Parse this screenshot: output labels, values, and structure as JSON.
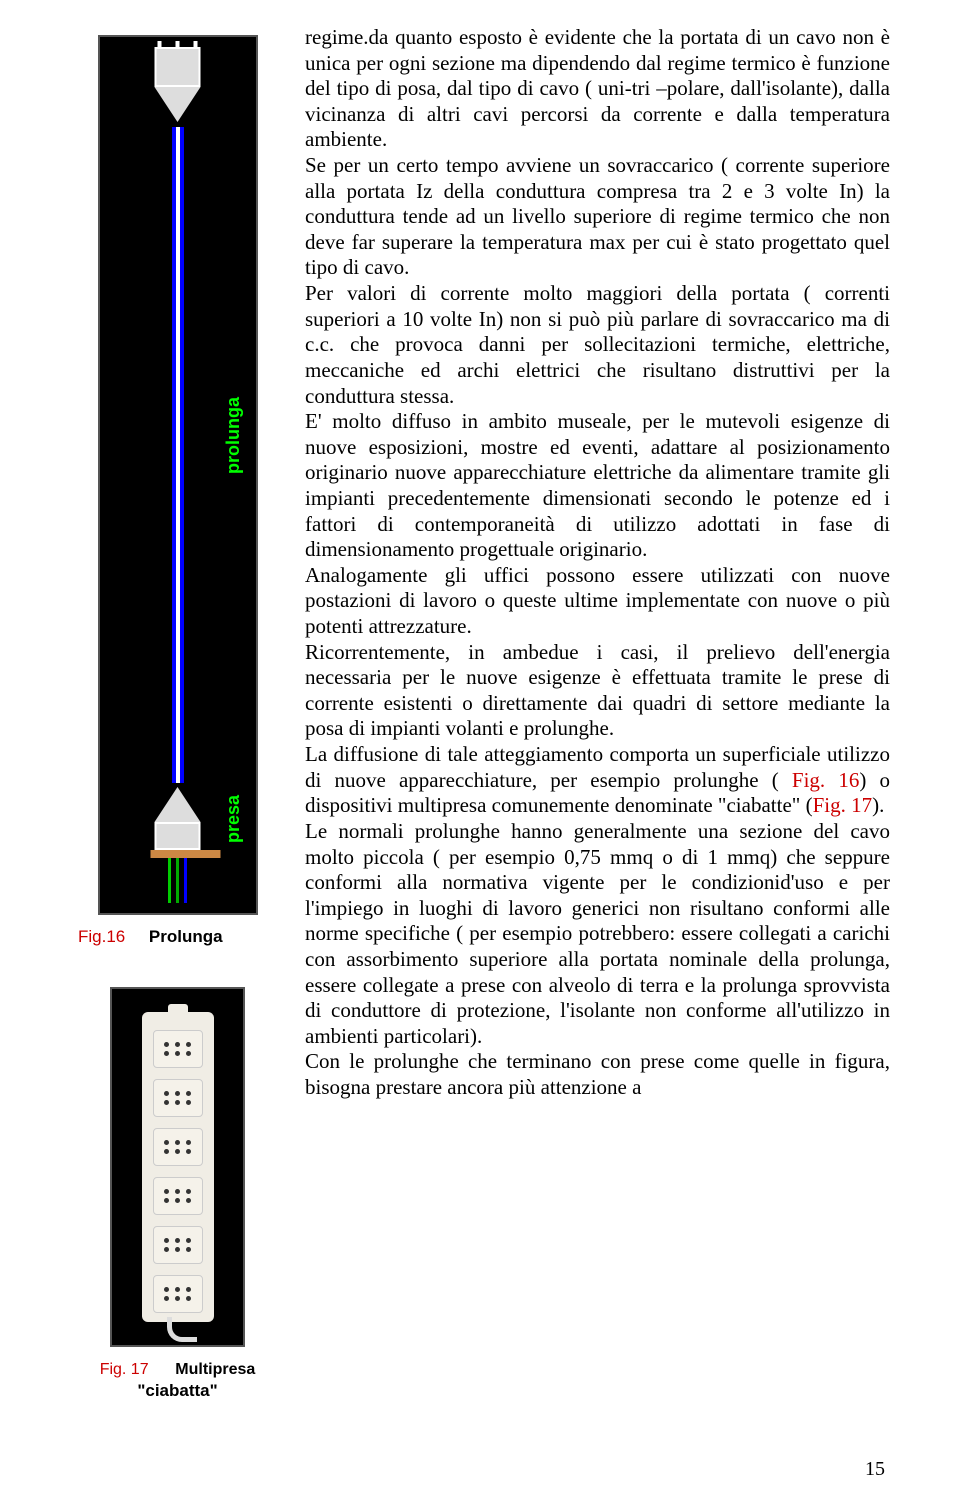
{
  "leftColumn": {
    "fig16": {
      "imgLabels": {
        "prolunga": "prolunga",
        "presa": "presa"
      },
      "caption": {
        "num": "Fig.16",
        "text": "Prolunga"
      }
    },
    "fig17": {
      "caption": {
        "num": "Fig. 17",
        "text": "Multipresa"
      },
      "caption2": "\"ciabatta\""
    }
  },
  "body": {
    "p1a": "regime.da quanto esposto è evidente che la portata di un cavo non è unica per ogni sezione ma dipendendo dal regime termico è funzione del tipo di posa, dal tipo di cavo ( uni-tri –polare, dall'isolante), dalla vicinanza di altri cavi percorsi da corrente e dalla temperatura ambiente.",
    "p2": "Se per un certo tempo avviene un sovraccarico ( corrente superiore alla portata Iz della conduttura compresa tra 2 e 3 volte In) la conduttura tende ad un livello superiore di regime termico che non deve far superare la temperatura max per cui è stato progettato quel tipo di cavo.",
    "p3": "Per valori di corrente molto maggiori della portata ( correnti superiori a 10 volte In) non si può più parlare di sovraccarico ma di c.c. che provoca danni per sollecitazioni termiche, elettriche, meccaniche ed archi elettrici che risultano distruttivi per la conduttura stessa.",
    "p4": "E' molto diffuso in ambito museale, per le mutevoli esigenze di nuove esposizioni, mostre ed eventi, adattare al posizionamento originario nuove apparecchiature elettriche da alimentare tramite gli impianti precedentemente dimensionati secondo le potenze ed i fattori di contemporaneità di utilizzo adottati in fase di dimensionamento progettuale originario.",
    "p5": "Analogamente gli uffici possono essere utilizzati con nuove postazioni di lavoro o queste ultime implementate con nuove o più potenti attrezzature.",
    "p6": "Ricorrentemente, in ambedue i casi, il prelievo dell'energia necessaria per le nuove esigenze è effettuata tramite le prese di corrente esistenti o direttamente dai quadri di settore mediante la posa di impianti volanti e prolunghe.",
    "p7a": "La diffusione di tale atteggiamento comporta un superficiale utilizzo di nuove apparecchiature, per esempio prolunghe ( ",
    "p7_fig16": "Fig. 16",
    "p7b": ") o dispositivi multipresa comunemente denominate \"ciabatte\" (",
    "p7_fig17": "Fig. 17",
    "p7c": ").",
    "p8": "Le normali prolunghe hanno generalmente una sezione del cavo molto piccola ( per esempio 0,75 mmq o di 1 mmq) che seppure conformi alla normativa vigente per le condizionid'uso e per l'impiego in luoghi di lavoro generici non risultano conformi alle norme specifiche ( per esempio potrebbero: essere collegati a carichi con assorbimento superiore alla portata nominale della prolunga, essere collegate a prese con alveolo di terra e la prolunga sprovvista di conduttore di protezione, l'isolante non conforme all'utilizzo in ambienti particolari).",
    "p9": "Con le prolunghe che terminano con prese come quelle in figura, bisogna prestare ancora più attenzione a"
  },
  "pageNumber": "15"
}
